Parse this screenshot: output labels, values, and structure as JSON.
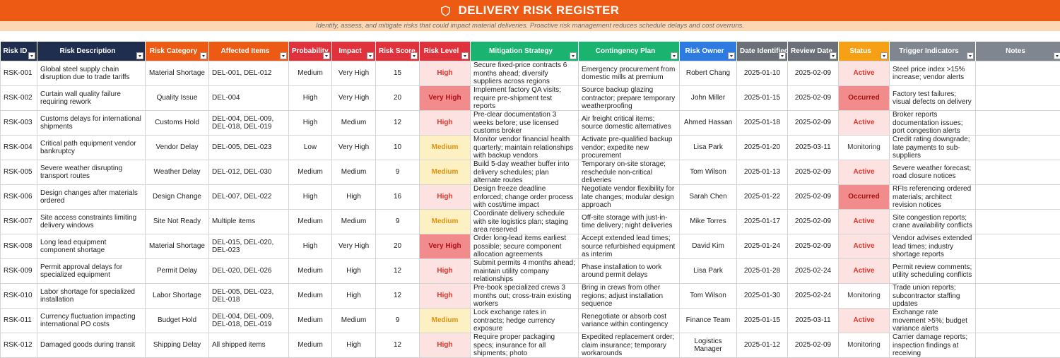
{
  "header": {
    "title": "DELIVERY RISK REGISTER",
    "subtitle": "Identify, assess, and mitigate risks that could impact material deliveries. Proactive risk management reduces schedule delays and cost overruns."
  },
  "columns": [
    {
      "key": "id",
      "label": "Risk ID",
      "color": "#1f2d4e"
    },
    {
      "key": "desc",
      "label": "Risk Description",
      "color": "#1f2d4e"
    },
    {
      "key": "category",
      "label": "Risk Category",
      "color": "#ec5a13"
    },
    {
      "key": "items",
      "label": "Affected Items",
      "color": "#ec5a13"
    },
    {
      "key": "prob",
      "label": "Probability",
      "color": "#e0323c"
    },
    {
      "key": "impact",
      "label": "Impact",
      "color": "#e0323c"
    },
    {
      "key": "score",
      "label": "Risk Score",
      "color": "#e0323c"
    },
    {
      "key": "level",
      "label": "Risk Level",
      "color": "#e0323c"
    },
    {
      "key": "mitigation",
      "label": "Mitigation Strategy",
      "color": "#1bb370"
    },
    {
      "key": "contingency",
      "label": "Contingency Plan",
      "color": "#1bb370"
    },
    {
      "key": "owner",
      "label": "Risk Owner",
      "color": "#2d7be0"
    },
    {
      "key": "identified",
      "label": "Date Identified",
      "color": "#6b7078"
    },
    {
      "key": "review",
      "label": "Review Date",
      "color": "#6b7078"
    },
    {
      "key": "status",
      "label": "Status",
      "color": "#f5a015"
    },
    {
      "key": "triggers",
      "label": "Trigger Indicators",
      "color": "#7f8690"
    },
    {
      "key": "notes",
      "label": "Notes",
      "color": "#7f8690"
    }
  ],
  "rows": [
    {
      "id": "RSK-001",
      "desc": "Global steel supply chain disruption due to trade tariffs",
      "category": "Material Shortage",
      "items": "DEL-001, DEL-012",
      "prob": "Medium",
      "impact": "Very High",
      "score": "15",
      "level": "High",
      "mitigation": "Secure fixed-price contracts 6 months ahead; diversify suppliers across regions",
      "contingency": "Emergency procurement from domestic mills at premium",
      "owner": "Robert Chang",
      "identified": "2025-01-10",
      "review": "2025-02-09",
      "status": "Active",
      "triggers": "Steel price index >15% increase; vendor alerts",
      "notes": ""
    },
    {
      "id": "RSK-002",
      "desc": "Curtain wall quality failure requiring rework",
      "category": "Quality Issue",
      "items": "DEL-004",
      "prob": "High",
      "impact": "Very High",
      "score": "20",
      "level": "Very High",
      "mitigation": "Implement factory QA visits; require pre-shipment test reports",
      "contingency": "Source backup glazing contractor; prepare temporary weatherproofing",
      "owner": "John Miller",
      "identified": "2025-01-15",
      "review": "2025-02-09",
      "status": "Occurred",
      "triggers": "Factory test failures; visual defects on delivery",
      "notes": ""
    },
    {
      "id": "RSK-003",
      "desc": "Customs delays for international shipments",
      "category": "Customs Hold",
      "items": "DEL-004, DEL-009, DEL-018, DEL-019",
      "prob": "High",
      "impact": "Medium",
      "score": "12",
      "level": "High",
      "mitigation": "Pre-clear documentation 3 weeks before; use licensed customs broker",
      "contingency": "Air freight critical items; source domestic alternatives",
      "owner": "Ahmed Hassan",
      "identified": "2025-01-18",
      "review": "2025-02-09",
      "status": "Active",
      "triggers": "Broker reports documentation issues; port congestion alerts",
      "notes": ""
    },
    {
      "id": "RSK-004",
      "desc": "Critical path equipment vendor bankruptcy",
      "category": "Vendor Delay",
      "items": "DEL-005, DEL-023",
      "prob": "Low",
      "impact": "Very High",
      "score": "10",
      "level": "Medium",
      "mitigation": "Monitor vendor financial health quarterly; maintain relationships with backup vendors",
      "contingency": "Activate pre-qualified backup vendor; expedite new procurement",
      "owner": "Lisa Park",
      "identified": "2025-01-20",
      "review": "2025-03-11",
      "status": "Monitoring",
      "triggers": "Credit rating downgrade; late payments to sub-suppliers",
      "notes": ""
    },
    {
      "id": "RSK-005",
      "desc": "Severe weather disrupting transport routes",
      "category": "Weather Delay",
      "items": "DEL-012, DEL-030",
      "prob": "Medium",
      "impact": "Medium",
      "score": "9",
      "level": "Medium",
      "mitigation": "Build 5-day weather buffer into delivery schedules; plan alternate routes",
      "contingency": "Temporary on-site storage; reschedule non-critical deliveries",
      "owner": "Tom Wilson",
      "identified": "2025-01-13",
      "review": "2025-02-09",
      "status": "Active",
      "triggers": "Severe weather forecast; road closure notices",
      "notes": ""
    },
    {
      "id": "RSK-006",
      "desc": "Design changes after materials ordered",
      "category": "Design Change",
      "items": "DEL-007, DEL-022",
      "prob": "High",
      "impact": "High",
      "score": "16",
      "level": "High",
      "mitigation": "Design freeze deadline enforced; change order process with cost/time impact",
      "contingency": "Negotiate vendor flexibility for late changes; modular design approach",
      "owner": "Sarah Chen",
      "identified": "2025-01-22",
      "review": "2025-02-09",
      "status": "Occurred",
      "triggers": "RFIs referencing ordered materials; architect revision notices",
      "notes": ""
    },
    {
      "id": "RSK-007",
      "desc": "Site access constraints limiting delivery windows",
      "category": "Site Not Ready",
      "items": "Multiple items",
      "prob": "Medium",
      "impact": "Medium",
      "score": "9",
      "level": "Medium",
      "mitigation": "Coordinate delivery schedule with site logistics plan; staging area reserved",
      "contingency": "Off-site storage with just-in-time delivery; night deliveries",
      "owner": "Mike Torres",
      "identified": "2025-01-17",
      "review": "2025-02-09",
      "status": "Active",
      "triggers": "Site congestion reports; crane availability conflicts",
      "notes": ""
    },
    {
      "id": "RSK-008",
      "desc": "Long lead equipment component shortage",
      "category": "Material Shortage",
      "items": "DEL-015, DEL-020, DEL-023",
      "prob": "High",
      "impact": "Very High",
      "score": "20",
      "level": "Very High",
      "mitigation": "Order long-lead items earliest possible; secure component allocation agreements",
      "contingency": "Accept extended lead times; source refurbished equipment as interim",
      "owner": "David Kim",
      "identified": "2025-01-24",
      "review": "2025-02-09",
      "status": "Active",
      "triggers": "Vendor advises extended lead times; industry shortage reports",
      "notes": ""
    },
    {
      "id": "RSK-009",
      "desc": "Permit approval delays for specialized equipment",
      "category": "Permit Delay",
      "items": "DEL-020, DEL-026",
      "prob": "Medium",
      "impact": "High",
      "score": "12",
      "level": "High",
      "mitigation": "Submit permits 4 months ahead; maintain utility company relationships",
      "contingency": "Phase installation to work around permit delays",
      "owner": "Lisa Park",
      "identified": "2025-01-28",
      "review": "2025-02-24",
      "status": "Active",
      "triggers": "Permit review comments; utility scheduling conflicts",
      "notes": ""
    },
    {
      "id": "RSK-010",
      "desc": "Labor shortage for specialized installation",
      "category": "Labor Shortage",
      "items": "DEL-005, DEL-023, DEL-018",
      "prob": "Medium",
      "impact": "High",
      "score": "12",
      "level": "High",
      "mitigation": "Pre-book specialized crews 3 months out; cross-train existing workers",
      "contingency": "Bring in crews from other regions; adjust installation sequence",
      "owner": "Tom Wilson",
      "identified": "2025-01-30",
      "review": "2025-02-24",
      "status": "Monitoring",
      "triggers": "Trade union reports; subcontractor staffing updates",
      "notes": ""
    },
    {
      "id": "RSK-011",
      "desc": "Currency fluctuation impacting international PO costs",
      "category": "Budget Hold",
      "items": "DEL-004, DEL-009, DEL-018, DEL-019",
      "prob": "Medium",
      "impact": "Medium",
      "score": "9",
      "level": "Medium",
      "mitigation": "Lock exchange rates in contracts; hedge currency exposure",
      "contingency": "Renegotiate or absorb cost variance within contingency",
      "owner": "Finance Team",
      "identified": "2025-01-15",
      "review": "2025-03-11",
      "status": "Active",
      "triggers": "Exchange rate movement >5%; budget variance alerts",
      "notes": ""
    },
    {
      "id": "RSK-012",
      "desc": "Damaged goods during transit",
      "category": "Shipping Delay",
      "items": "All shipped items",
      "prob": "Medium",
      "impact": "High",
      "score": "12",
      "level": "High",
      "mitigation": "Require proper packaging specs; insurance for all shipments; photo documentation",
      "contingency": "Expedited replacement order; claim insurance; temporary workarounds",
      "owner": "Logistics Manager",
      "identified": "2025-01-12",
      "review": "2025-02-09",
      "status": "Monitoring",
      "triggers": "Carrier damage reports; inspection findings at receiving",
      "notes": ""
    }
  ]
}
